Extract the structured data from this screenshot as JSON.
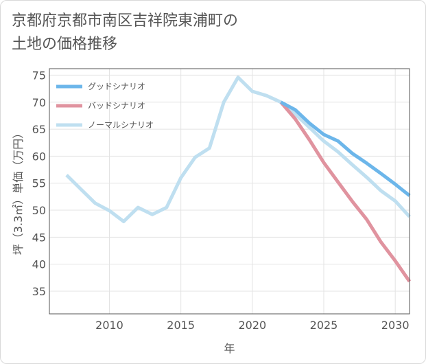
{
  "title_lines": [
    "京都府京都市南区吉祥院東浦町の",
    "土地の価格推移"
  ],
  "chart_data": {
    "type": "line",
    "xlabel": "年",
    "ylabel": "坪（3.3㎡）単価（万円）",
    "xlim": [
      2005.8,
      2031
    ],
    "ylim": [
      30.8,
      76.2
    ],
    "xticks": [
      2010,
      2015,
      2020,
      2025,
      2030
    ],
    "yticks": [
      35,
      40,
      45,
      50,
      55,
      60,
      65,
      70,
      75
    ],
    "legend_position": "top-left",
    "series": [
      {
        "name": "グッドシナリオ",
        "color": "#6cb6ea",
        "x": [
          2022,
          2023,
          2024,
          2025,
          2026,
          2027,
          2028,
          2029,
          2030,
          2031
        ],
        "y": [
          70.0,
          68.6,
          66.1,
          64.0,
          62.8,
          60.5,
          58.7,
          56.8,
          54.8,
          52.7
        ]
      },
      {
        "name": "バッドシナリオ",
        "color": "#e0939f",
        "x": [
          2022,
          2023,
          2024,
          2025,
          2026,
          2027,
          2028,
          2029,
          2030,
          2031
        ],
        "y": [
          70.0,
          66.9,
          63.0,
          58.8,
          55.2,
          51.6,
          48.3,
          44.1,
          40.6,
          36.8
        ]
      },
      {
        "name": "ノーマルシナリオ",
        "color": "#bfdff0",
        "x": [
          2007,
          2008,
          2009,
          2010,
          2011,
          2012,
          2013,
          2014,
          2015,
          2016,
          2017,
          2018,
          2019,
          2020,
          2021,
          2022,
          2023,
          2024,
          2025,
          2026,
          2027,
          2028,
          2029,
          2030,
          2031
        ],
        "y": [
          56.5,
          53.9,
          51.3,
          49.9,
          47.9,
          50.5,
          49.2,
          50.5,
          56.0,
          59.8,
          61.5,
          70.0,
          74.6,
          72.0,
          71.2,
          70.0,
          67.8,
          65.3,
          62.8,
          60.8,
          58.4,
          56.1,
          53.6,
          51.7,
          48.8
        ]
      }
    ]
  }
}
